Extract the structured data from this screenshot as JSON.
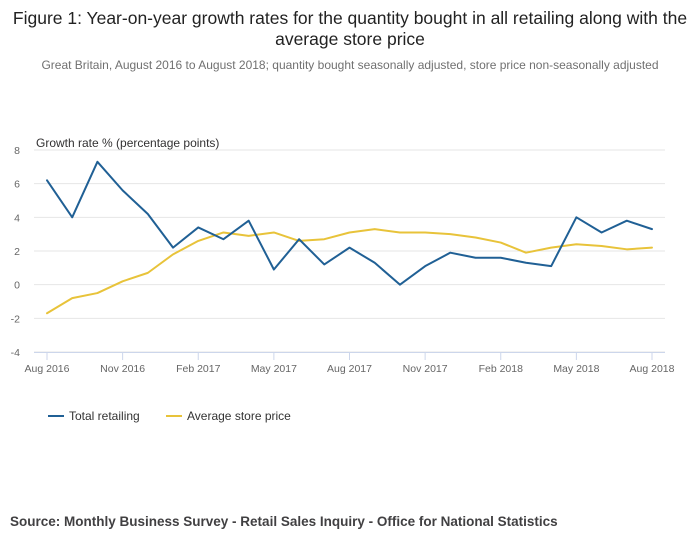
{
  "title": "Figure 1: Year-on-year growth rates for the quantity bought in all retailing along with the average store price",
  "subtitle": "Great Britain, August 2016 to August 2018; quantity bought seasonally adjusted, store price non-seasonally adjusted",
  "source": "Source: Monthly Business Survey - Retail Sales Inquiry - Office for National Statistics",
  "colors": {
    "total": "#206095",
    "price": "#E8C33A",
    "grid": "#e6e6e6",
    "axis": "#ccd6eb",
    "text": "#666666"
  },
  "chart_data": {
    "type": "line",
    "title": "Figure 1: Year-on-year growth rates for the quantity bought in all retailing along with the average store price",
    "subtitle": "Great Britain, August 2016 to August 2018; quantity bought seasonally adjusted, store price non-seasonally adjusted",
    "ylabel": "Growth rate % (percentage points)",
    "xlabel": "",
    "ylim": [
      -4,
      8
    ],
    "yticks": [
      -4,
      -2,
      0,
      2,
      4,
      6,
      8
    ],
    "grid": true,
    "legend_position": "bottom-left",
    "x": [
      "Aug 2016",
      "Sep 2016",
      "Oct 2016",
      "Nov 2016",
      "Dec 2016",
      "Jan 2017",
      "Feb 2017",
      "Mar 2017",
      "Apr 2017",
      "May 2017",
      "Jun 2017",
      "Jul 2017",
      "Aug 2017",
      "Sep 2017",
      "Oct 2017",
      "Nov 2017",
      "Dec 2017",
      "Jan 2018",
      "Feb 2018",
      "Mar 2018",
      "Apr 2018",
      "May 2018",
      "Jun 2018",
      "Jul 2018",
      "Aug 2018"
    ],
    "xtick_labels": [
      {
        "index": 0,
        "label": "Aug 2016"
      },
      {
        "index": 3,
        "label": "Nov 2016"
      },
      {
        "index": 6,
        "label": "Feb 2017"
      },
      {
        "index": 9,
        "label": "May 2017"
      },
      {
        "index": 12,
        "label": "Aug 2017"
      },
      {
        "index": 15,
        "label": "Nov 2017"
      },
      {
        "index": 18,
        "label": "Feb 2018"
      },
      {
        "index": 21,
        "label": "May 2018"
      },
      {
        "index": 24,
        "label": "Aug 2018"
      }
    ],
    "series": [
      {
        "name": "Total retailing",
        "color": "#206095",
        "values": [
          6.2,
          4.0,
          7.3,
          5.6,
          4.2,
          2.2,
          3.4,
          2.7,
          3.8,
          0.9,
          2.7,
          1.2,
          2.2,
          1.3,
          0.0,
          1.1,
          1.9,
          1.6,
          1.6,
          1.3,
          1.1,
          4.0,
          3.1,
          3.8,
          3.3
        ]
      },
      {
        "name": "Average store price",
        "color": "#E8C33A",
        "values": [
          -1.7,
          -0.8,
          -0.5,
          0.2,
          0.7,
          1.8,
          2.6,
          3.1,
          2.9,
          3.1,
          2.6,
          2.7,
          3.1,
          3.3,
          3.1,
          3.1,
          3.0,
          2.8,
          2.5,
          1.9,
          2.2,
          2.4,
          2.3,
          2.1,
          2.2
        ]
      }
    ]
  }
}
